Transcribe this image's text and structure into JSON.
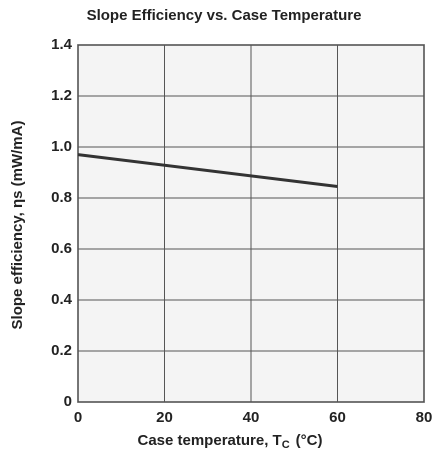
{
  "chart_data": {
    "type": "line",
    "title": "Slope Efficiency vs. Case Temperature",
    "x_label": "Case temperature, T",
    "x_label_subscript": "C",
    "x_label_unit": "(°C)",
    "y_label": "Slope efficiency, ηs (mW/mA)",
    "x": [
      0,
      60
    ],
    "series": [
      {
        "name": "Slope efficiency",
        "color": "#333333",
        "values": [
          0.97,
          0.845
        ]
      }
    ],
    "xlim": [
      0,
      80
    ],
    "xticks": [
      0,
      20,
      40,
      60,
      80
    ],
    "ylim": [
      0,
      1.4
    ],
    "yticks": [
      0,
      0.2,
      0.4,
      0.6,
      0.8,
      {
        "value": 1,
        "label": "1.0"
      },
      1.2,
      1.4
    ],
    "grid": true
  }
}
